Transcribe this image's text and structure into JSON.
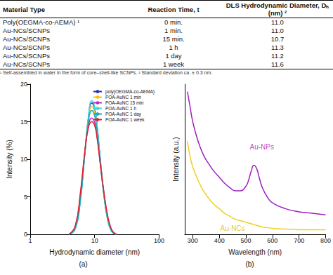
{
  "table": {
    "header": [
      "Material Type",
      "Reaction Time, t",
      "DLS Hydrodynamic Diameter, Dₕ (nm) ²"
    ],
    "rows": [
      [
        "Poly(OEGMA-co-AEMA) ¹",
        "0 min.",
        "11.0"
      ],
      [
        "Au-NCs/SCNPs",
        "1 min.",
        "11.0"
      ],
      [
        "Au-NCs/SCNPs",
        "15 min.",
        "10.7"
      ],
      [
        "Au-NCs/SCNPs",
        "1 h",
        "11.3"
      ],
      [
        "Au-NCs/SCNPs",
        "1 day",
        "11.2"
      ],
      [
        "Au-NCs/SCNPs",
        "1 week",
        "11.6"
      ]
    ],
    "footnotes": [
      "¹ Self-assembled in water in the form of core–shell-like SCNPs.",
      "² Standard deviation ca. ± 0.3 nm."
    ]
  },
  "chart_data": [
    {
      "type": "line",
      "title": "(a)",
      "x_label": "Hydrodynamic diameter (nm)",
      "y_label": "Intensity (%)",
      "log": "x",
      "xlim": [
        1,
        100
      ],
      "xticks": [
        1,
        10,
        100
      ],
      "ylim": [
        0,
        20
      ],
      "yticks": [
        0,
        5,
        10,
        15,
        20
      ],
      "grid": false,
      "legend": "upper right",
      "x": [
        4,
        5,
        6,
        7,
        8,
        9,
        10,
        11,
        12,
        14,
        16,
        18,
        20,
        22
      ],
      "series": [
        {
          "name": "poly(OEGMA-co-AEMA)",
          "color": "#1f35b5",
          "values": [
            0,
            0.8,
            4.5,
            10.5,
            15.5,
            17.5,
            16.8,
            14.2,
            10.8,
            5.2,
            1.9,
            0.5,
            0.1,
            0
          ]
        },
        {
          "name": "POA-AuNC 1 min",
          "color": "#f2c21a",
          "values": [
            0,
            0.9,
            4.8,
            10.8,
            15.3,
            17.0,
            16.2,
            13.6,
            10.3,
            5.0,
            1.9,
            0.6,
            0.1,
            0
          ]
        },
        {
          "name": "POA-AuNC 15 min",
          "color": "#c02ec4",
          "values": [
            0,
            1.0,
            5.2,
            10.6,
            14.4,
            15.5,
            14.9,
            12.8,
            10.0,
            5.3,
            2.2,
            0.7,
            0.2,
            0
          ]
        },
        {
          "name": "POA-AuNC 1 h",
          "color": "#3fd3e6",
          "values": [
            0,
            0.7,
            4.3,
            10.4,
            15.6,
            17.8,
            17.0,
            14.3,
            10.7,
            5.0,
            1.8,
            0.5,
            0.1,
            0
          ]
        },
        {
          "name": "POA-AuNC 1 day",
          "color": "#1fa7b8",
          "values": [
            0,
            0.8,
            4.6,
            10.5,
            15.0,
            16.5,
            15.8,
            13.4,
            10.2,
            5.1,
            2.0,
            0.6,
            0.1,
            0
          ]
        },
        {
          "name": "POA-AuNC 1 week",
          "color": "#e0202a",
          "values": [
            0,
            1.1,
            5.5,
            10.8,
            14.2,
            15.0,
            14.5,
            12.6,
            10.0,
            5.5,
            2.4,
            0.8,
            0.2,
            0
          ]
        }
      ]
    },
    {
      "type": "line",
      "title": "(b)",
      "x_label": "Wavelength (nm)",
      "y_label": "Intensity (a.u.)",
      "xlim": [
        270,
        800
      ],
      "xticks": [
        300,
        400,
        500,
        600,
        700,
        800
      ],
      "ylim": [
        0,
        1
      ],
      "grid": false,
      "tick_labels": "x",
      "x": [
        280,
        290,
        300,
        320,
        340,
        360,
        380,
        400,
        420,
        440,
        460,
        480,
        500,
        510,
        520,
        530,
        540,
        550,
        560,
        580,
        600,
        650,
        700,
        750,
        800
      ],
      "series": [
        {
          "name": "Au-NPs",
          "color": "#a020c0",
          "values": [
            0.95,
            0.85,
            0.75,
            0.62,
            0.53,
            0.47,
            0.42,
            0.38,
            0.34,
            0.31,
            0.29,
            0.29,
            0.32,
            0.36,
            0.42,
            0.46,
            0.44,
            0.38,
            0.32,
            0.25,
            0.21,
            0.17,
            0.15,
            0.14,
            0.13
          ]
        },
        {
          "name": "Au-NCs",
          "color": "#f0d020",
          "values": [
            0.62,
            0.52,
            0.45,
            0.36,
            0.29,
            0.24,
            0.2,
            0.17,
            0.14,
            0.12,
            0.1,
            0.09,
            0.08,
            0.075,
            0.07,
            0.065,
            0.06,
            0.055,
            0.05,
            0.045,
            0.04,
            0.035,
            0.03,
            0.03,
            0.03
          ]
        }
      ],
      "annotations": [
        {
          "text": "Au-NPs",
          "x": 560,
          "y": 0.58,
          "color": "#a020c0"
        },
        {
          "text": "Au-NCs",
          "x": 450,
          "y": 0.04,
          "color": "#d8b800"
        }
      ]
    }
  ]
}
